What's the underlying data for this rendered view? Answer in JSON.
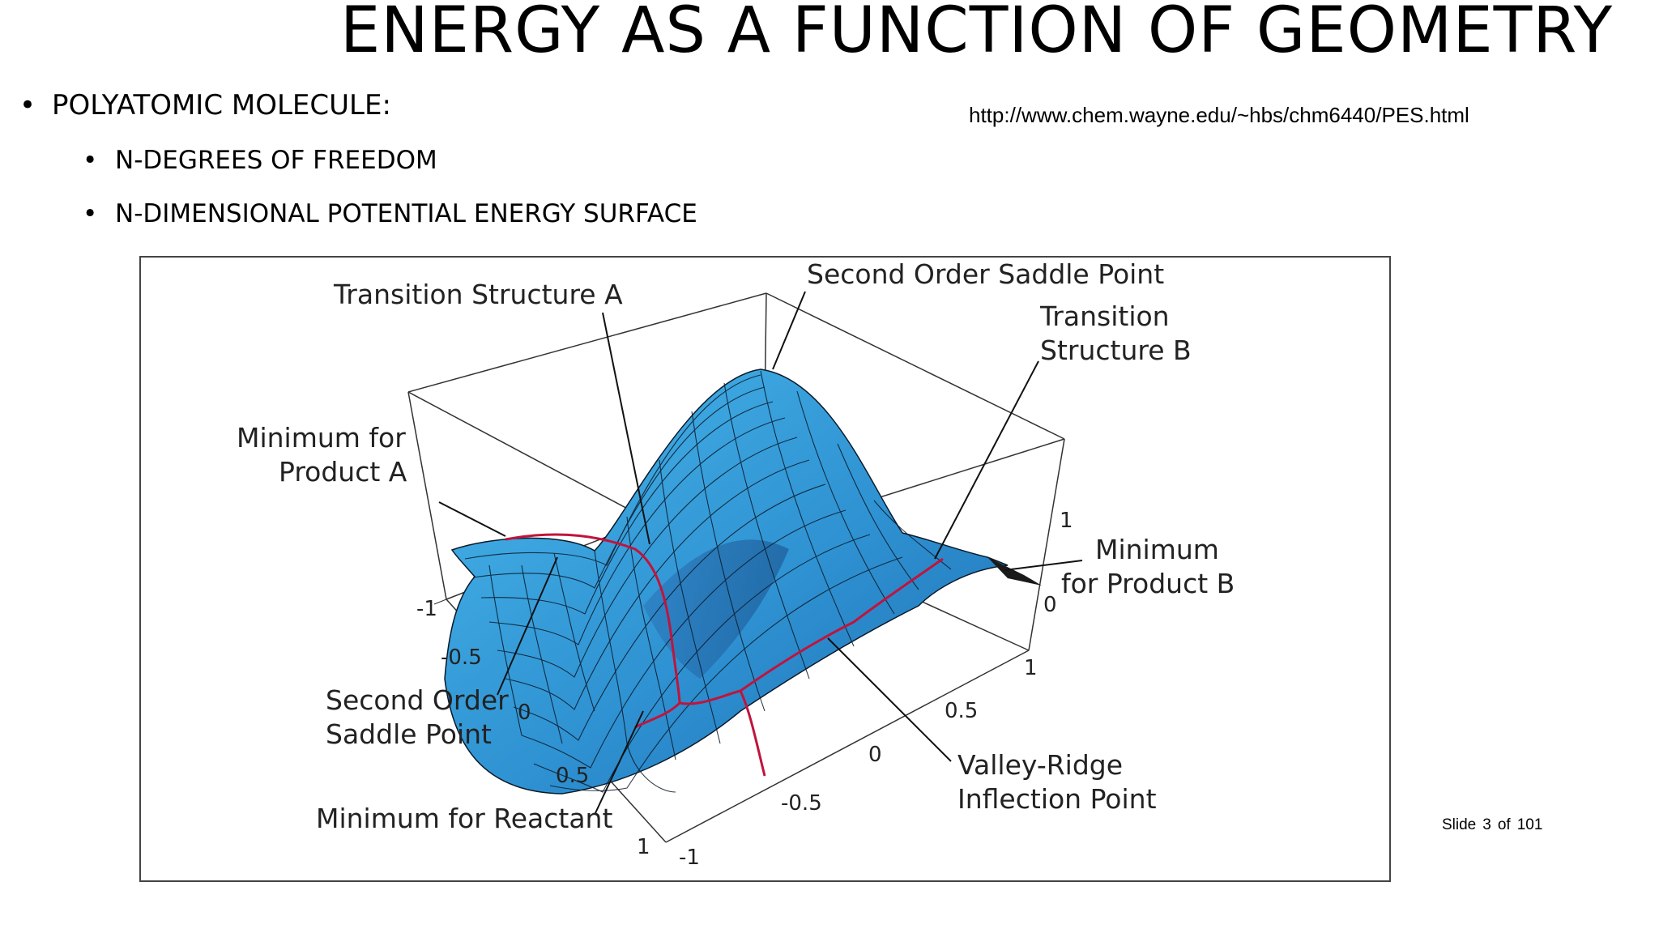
{
  "slide": {
    "title": "ENERGY AS A FUNCTION OF GEOMETRY",
    "bullets": [
      {
        "text": "POLYATOMIC MOLECULE:",
        "level": 1
      },
      {
        "text": "N-DEGREES OF FREEDOM",
        "level": 2
      },
      {
        "text": "N-DIMENSIONAL POTENTIAL ENERGY SURFACE",
        "level": 2
      }
    ],
    "bullet_char": "•",
    "source_url": "http://www.chem.wayne.edu/~hbs/chm6440/PES.html",
    "slide_label": "Slide",
    "slide_current": "3",
    "slide_of": "of",
    "slide_total": "101"
  },
  "figure": {
    "labels": {
      "ts_a": "Transition Structure A",
      "second_order_top": "Second Order Saddle Point",
      "ts_b_line1": "Transition",
      "ts_b_line2": "Structure B",
      "min_a_line1": "Minimum for",
      "min_a_line2": "Product A",
      "min_b_line1": "Minimum",
      "min_b_line2": "for Product B",
      "second_order_left_line1": "Second Order",
      "second_order_left_line2": "Saddle Point",
      "min_reactant": "Minimum for Reactant",
      "vri_line1": "Valley-Ridge",
      "vri_line2": "Inflection Point"
    },
    "left_axis_ticks": [
      "-1",
      "-0.5",
      "0",
      "0.5",
      "1"
    ],
    "bottom_axis_ticks": [
      "-1",
      "-0.5",
      "0",
      "0.5",
      "1"
    ],
    "right_axis_ticks": [
      "1",
      "0"
    ],
    "colors": {
      "surface": "#3aa7de",
      "surface_dark": "#1f5f9e",
      "grid": "#0a1a2a",
      "path": "#c0143c"
    }
  }
}
